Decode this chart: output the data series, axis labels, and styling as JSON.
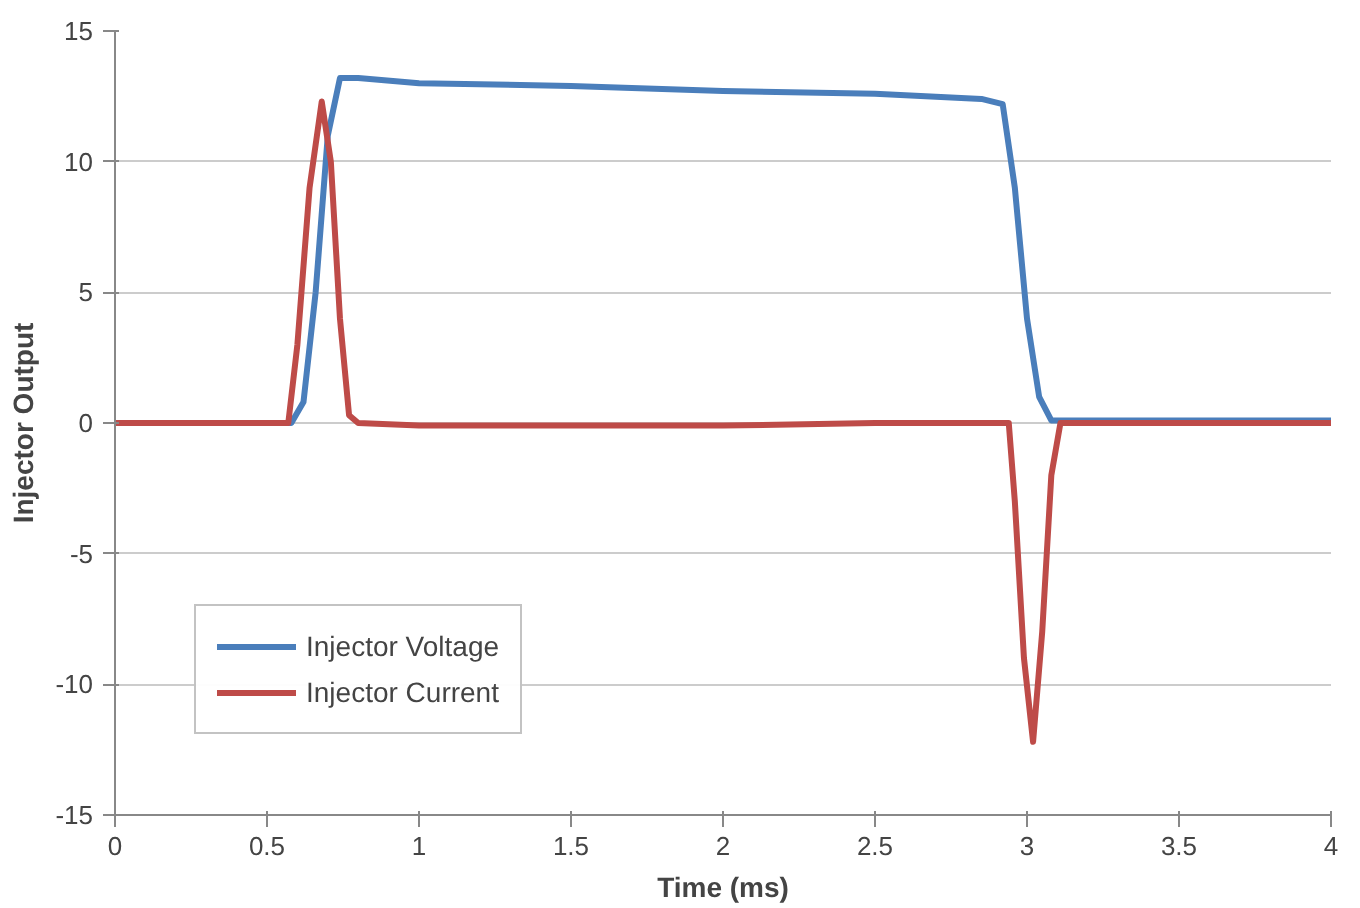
{
  "chart_data": {
    "type": "line",
    "xlabel": "Time (ms)",
    "ylabel": "Injector Output",
    "xlim": [
      0,
      4
    ],
    "ylim": [
      -15,
      15
    ],
    "xticks": [
      0,
      0.5,
      1,
      1.5,
      2,
      2.5,
      3,
      3.5,
      4
    ],
    "yticks": [
      -15,
      -10,
      -5,
      0,
      5,
      10,
      15
    ],
    "grid": "y",
    "legend": "bottom left",
    "marker": "none",
    "line_style": "solid",
    "series": [
      {
        "name": "Injector Voltage",
        "color": "#4a7ebb",
        "x": [
          0,
          0.3,
          0.58,
          0.62,
          0.66,
          0.7,
          0.74,
          0.8,
          1.0,
          1.5,
          2.0,
          2.5,
          2.85,
          2.92,
          2.96,
          3.0,
          3.04,
          3.08,
          3.2,
          3.5,
          4.0
        ],
        "values": [
          0,
          0,
          0,
          0.8,
          5,
          11,
          13.2,
          13.2,
          13.0,
          12.9,
          12.7,
          12.6,
          12.4,
          12.2,
          9,
          4,
          1,
          0.1,
          0.1,
          0.1,
          0.1
        ]
      },
      {
        "name": "Injector Current",
        "color": "#be4b48",
        "x": [
          0,
          0.3,
          0.57,
          0.6,
          0.64,
          0.68,
          0.71,
          0.74,
          0.77,
          0.8,
          1.0,
          1.5,
          2.0,
          2.5,
          2.94,
          2.96,
          2.99,
          3.02,
          3.05,
          3.08,
          3.11,
          3.2,
          3.5,
          4.0
        ],
        "values": [
          0,
          0,
          0,
          3,
          9,
          12.3,
          10,
          4,
          0.3,
          0,
          -0.1,
          -0.1,
          -0.1,
          0,
          0,
          -3,
          -9,
          -12.2,
          -8,
          -2,
          0,
          0,
          0,
          0
        ]
      }
    ]
  }
}
